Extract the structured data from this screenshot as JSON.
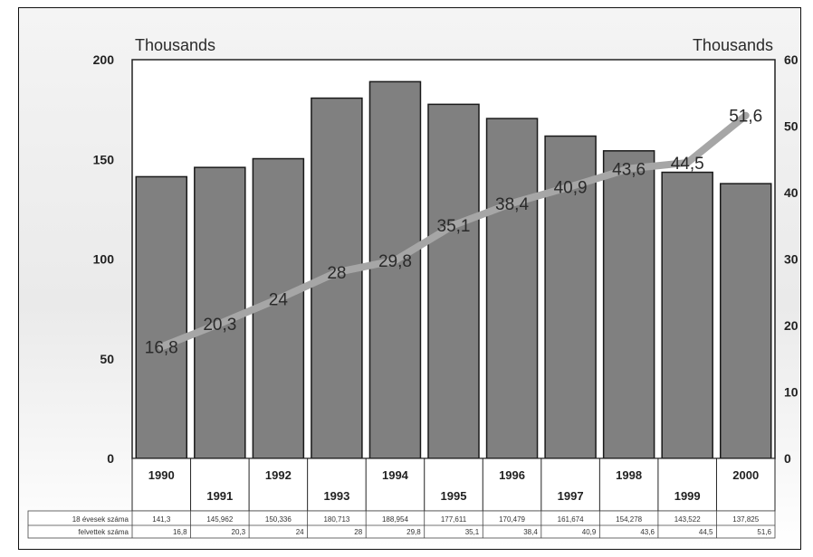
{
  "chart_data": {
    "type": "bar",
    "categories": [
      "1990",
      "1991",
      "1992",
      "1993",
      "1994",
      "1995",
      "1996",
      "1997",
      "1998",
      "1999",
      "2000"
    ],
    "series": [
      {
        "name": "18 évesek száma",
        "type": "bar",
        "axis": "left",
        "values": [
          141.3,
          145.962,
          150.336,
          180.713,
          188.954,
          177.611,
          170.479,
          161.674,
          154.278,
          143.522,
          137.825
        ],
        "table_labels": [
          "141,3",
          "145,962",
          "150,336",
          "180,713",
          "188,954",
          "177,611",
          "170,479",
          "161,674",
          "154,278",
          "143,522",
          "137,825"
        ]
      },
      {
        "name": "felvettek száma",
        "type": "line",
        "axis": "right",
        "values": [
          16.8,
          20.3,
          24,
          28,
          29.8,
          35.1,
          38.4,
          40.9,
          43.6,
          44.5,
          51.6
        ],
        "labels": [
          "16,8",
          "20,3",
          "24",
          "28",
          "29,8",
          "35,1",
          "38,4",
          "40,9",
          "43,6",
          "44,5",
          "51,6"
        ]
      }
    ],
    "left_axis": {
      "unit_label": "Thousands",
      "ylim": [
        0,
        200
      ],
      "ticks": [
        "0",
        "50",
        "100",
        "150",
        "200"
      ]
    },
    "right_axis": {
      "unit_label": "Thousands",
      "ylim": [
        0,
        60
      ],
      "ticks": [
        "0",
        "10",
        "20",
        "30",
        "40",
        "50",
        "60"
      ]
    },
    "grid": true,
    "data_table": true,
    "colors": {
      "bar": "#808080",
      "bar_edge": "#1a1a1a",
      "line": "#a6a6a6",
      "frame": "#111111"
    }
  }
}
